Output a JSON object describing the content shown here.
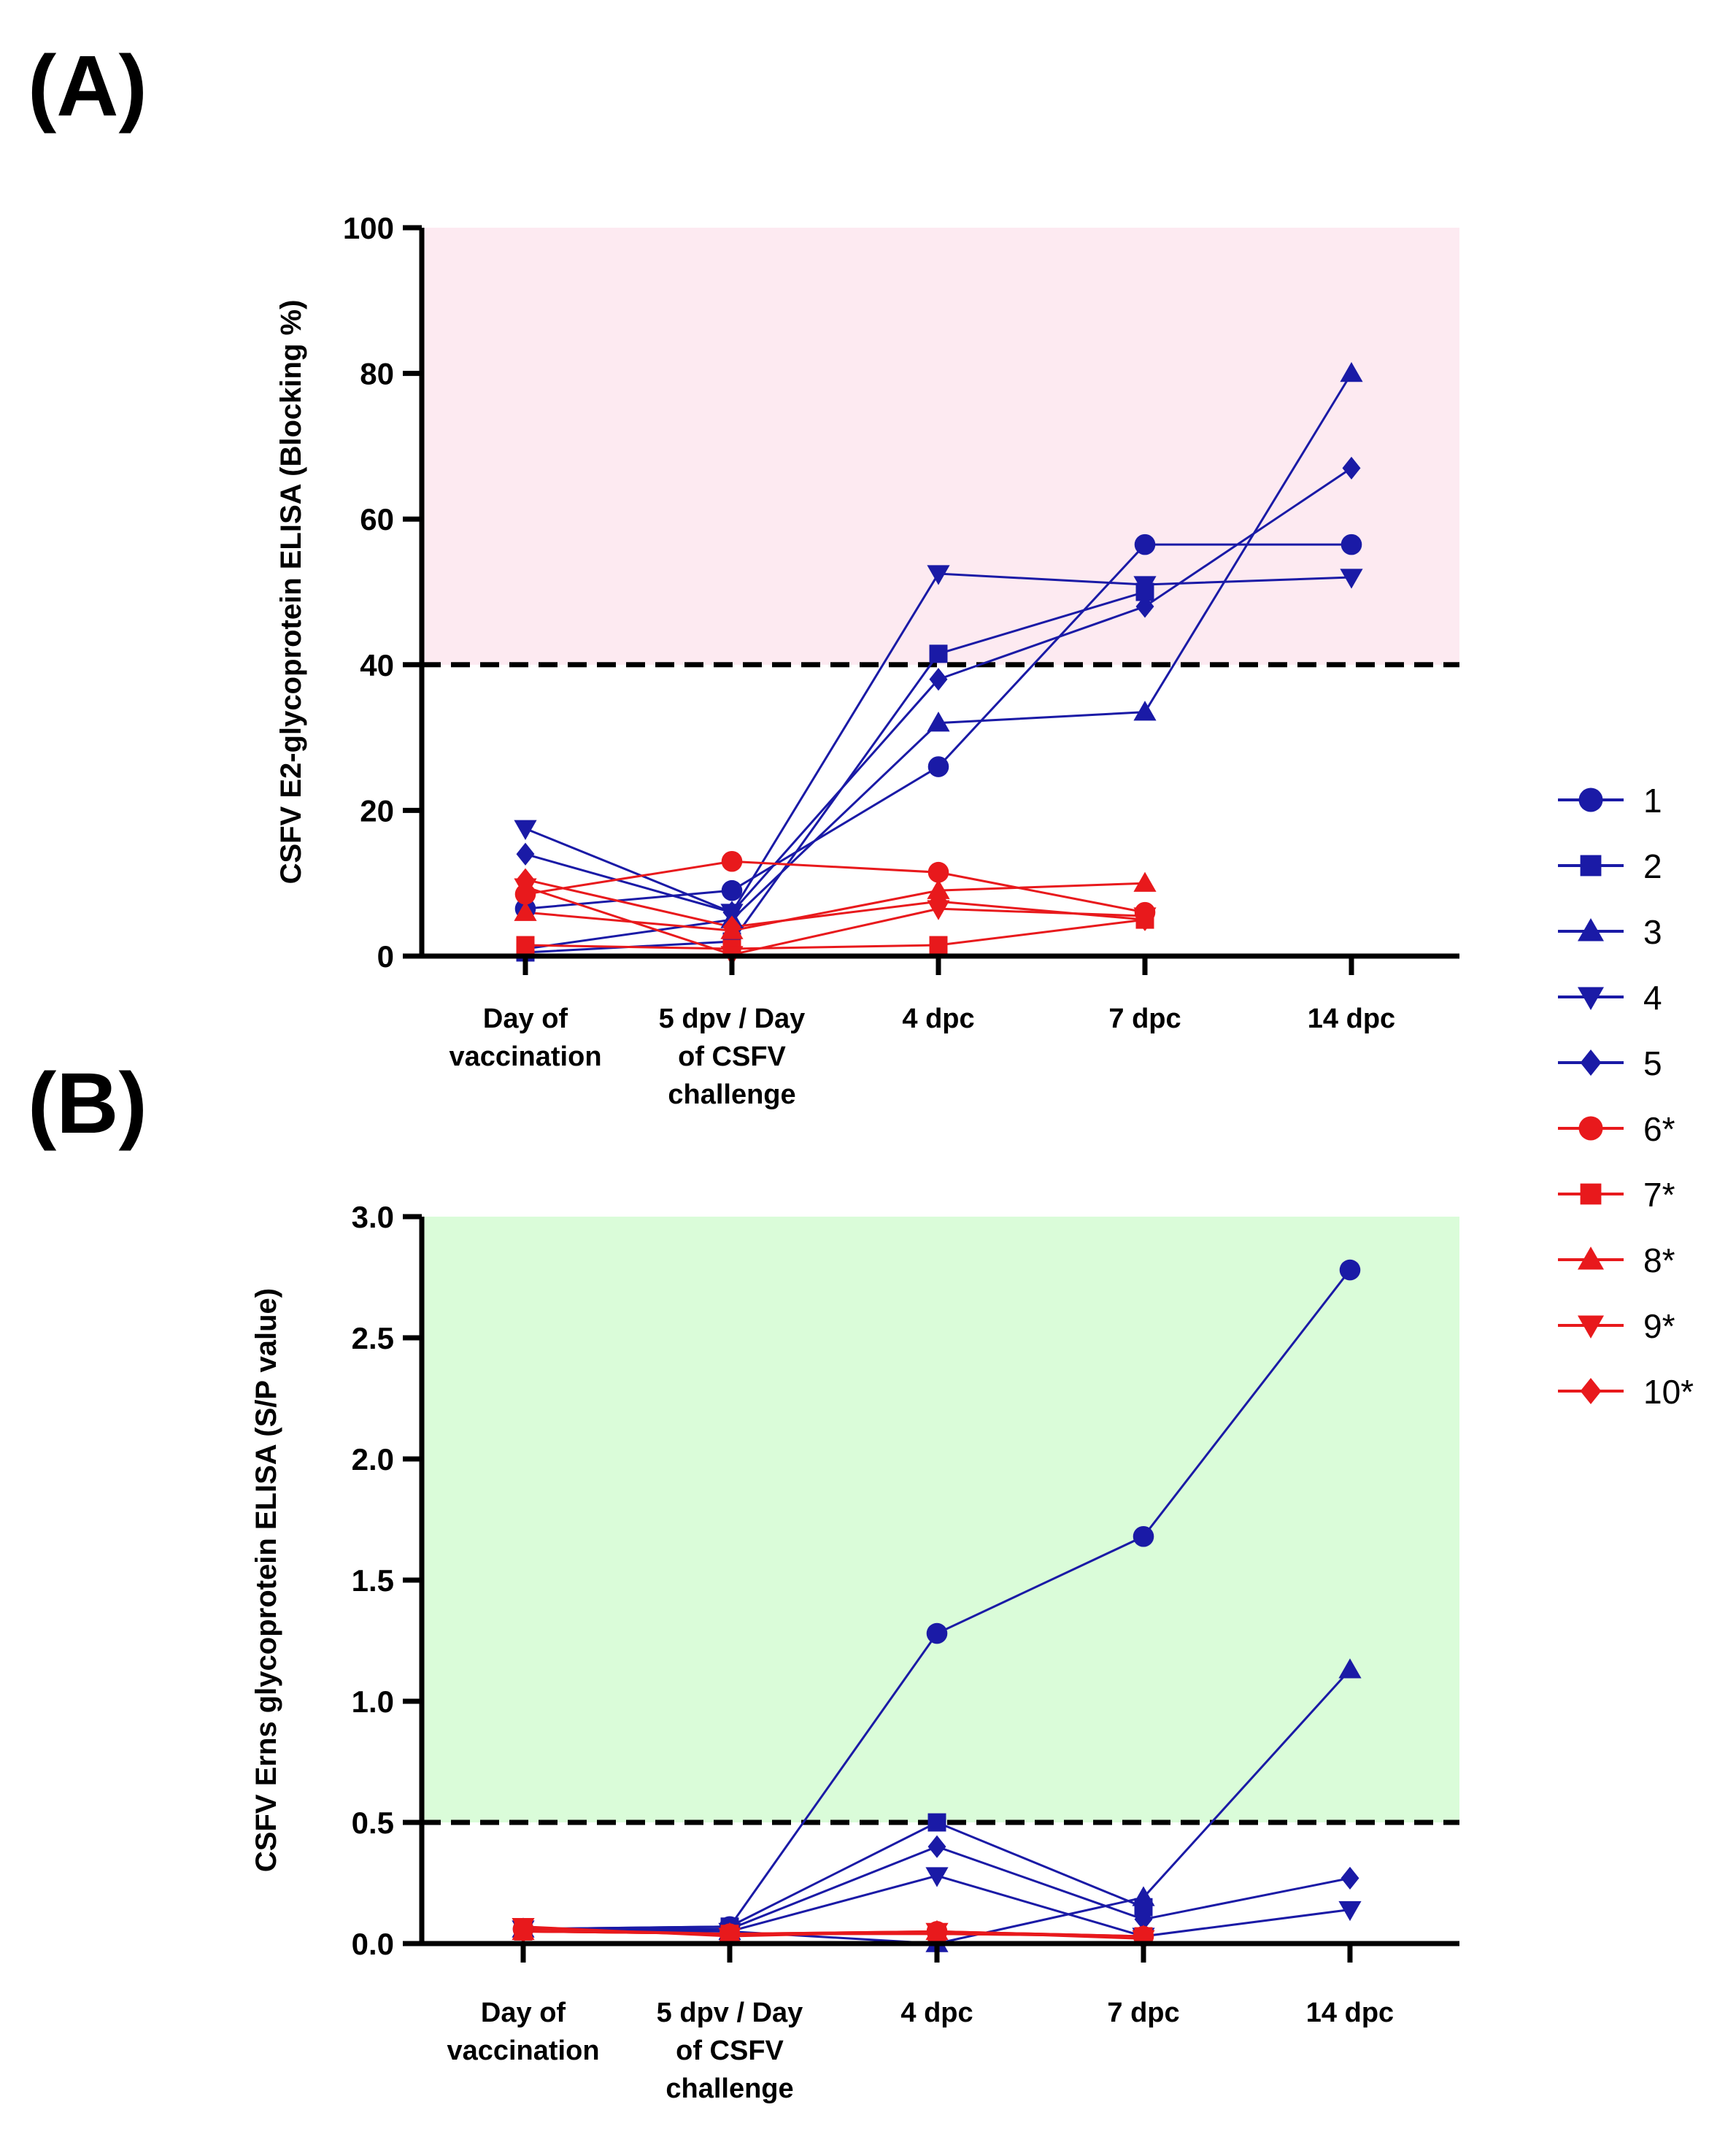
{
  "panels": [
    {
      "label": "(A)"
    },
    {
      "label": "(B)"
    }
  ],
  "colors": {
    "vaccinated_blue": "#1a1aa6",
    "control_red": "#e8191c",
    "positive_zone_A": "#fdeaf1",
    "positive_zone_B": "#dafcd9",
    "axis": "#000000"
  },
  "legend": {
    "placement": "right",
    "items": [
      {
        "label": "1",
        "marker": "circle",
        "color": "#1a1aa6"
      },
      {
        "label": "2",
        "marker": "square",
        "color": "#1a1aa6"
      },
      {
        "label": "3",
        "marker": "triangle-up",
        "color": "#1a1aa6"
      },
      {
        "label": "4",
        "marker": "triangle-down",
        "color": "#1a1aa6"
      },
      {
        "label": "5",
        "marker": "diamond",
        "color": "#1a1aa6"
      },
      {
        "label": "6*",
        "marker": "circle",
        "color": "#e8191c"
      },
      {
        "label": "7*",
        "marker": "square",
        "color": "#e8191c"
      },
      {
        "label": "8*",
        "marker": "triangle-up",
        "color": "#e8191c"
      },
      {
        "label": "9*",
        "marker": "triangle-down",
        "color": "#e8191c"
      },
      {
        "label": "10*",
        "marker": "diamond",
        "color": "#e8191c"
      }
    ]
  },
  "chart_data": [
    {
      "type": "line",
      "panel": "(A)",
      "title": "",
      "ylabel": "CSFV E2-glycoprotein ELISA (Blocking %)",
      "xlabel": "",
      "categories": [
        [
          "Day of",
          "vaccination"
        ],
        [
          "5 dpv / Day",
          "of CSFV",
          "challenge"
        ],
        [
          "4 dpc"
        ],
        [
          "7 dpc"
        ],
        [
          "14 dpc"
        ]
      ],
      "ylim": [
        0,
        100
      ],
      "yticks": [
        0,
        20,
        40,
        60,
        80,
        100
      ],
      "ytick_labels": [
        "0",
        "20",
        "40",
        "60",
        "80",
        "100"
      ],
      "threshold": 40,
      "positive_region": [
        40,
        100
      ],
      "grid": false,
      "series": [
        {
          "name": "1",
          "color": "#1a1aa6",
          "marker": "circle",
          "values": [
            6.5,
            9,
            26,
            56.5,
            56.5
          ]
        },
        {
          "name": "2",
          "color": "#1a1aa6",
          "marker": "square",
          "values": [
            0.5,
            2,
            41.5,
            50,
            null
          ]
        },
        {
          "name": "3",
          "color": "#1a1aa6",
          "marker": "triangle-up",
          "values": [
            1,
            5,
            32,
            33.5,
            80
          ]
        },
        {
          "name": "4",
          "color": "#1a1aa6",
          "marker": "triangle-down",
          "values": [
            17.5,
            6,
            52.5,
            51,
            52
          ]
        },
        {
          "name": "5",
          "color": "#1a1aa6",
          "marker": "diamond",
          "values": [
            14,
            6,
            38,
            48,
            67
          ]
        },
        {
          "name": "6*",
          "color": "#e8191c",
          "marker": "circle",
          "values": [
            8.5,
            13,
            11.5,
            6,
            null
          ]
        },
        {
          "name": "7*",
          "color": "#e8191c",
          "marker": "square",
          "values": [
            1.5,
            1,
            1.5,
            5,
            null
          ]
        },
        {
          "name": "8*",
          "color": "#e8191c",
          "marker": "triangle-up",
          "values": [
            6,
            3.5,
            9,
            10,
            null
          ]
        },
        {
          "name": "9*",
          "color": "#e8191c",
          "marker": "triangle-down",
          "values": [
            9.5,
            0.2,
            6.5,
            5.5,
            null
          ]
        },
        {
          "name": "10*",
          "color": "#e8191c",
          "marker": "diamond",
          "values": [
            10.5,
            4,
            7.5,
            5,
            null
          ]
        }
      ]
    },
    {
      "type": "line",
      "panel": "(B)",
      "title": "",
      "ylabel": "CSFV Erns glycoprotein ELISA (S/P value)",
      "xlabel": "",
      "categories": [
        [
          "Day of",
          "vaccination"
        ],
        [
          "5 dpv / Day",
          "of CSFV",
          "challenge"
        ],
        [
          "4 dpc"
        ],
        [
          "7 dpc"
        ],
        [
          "14 dpc"
        ]
      ],
      "ylim": [
        0,
        3.0
      ],
      "yticks": [
        0,
        0.5,
        1.0,
        1.5,
        2.0,
        2.5,
        3.0
      ],
      "ytick_labels": [
        "0.0",
        "0.5",
        "1.0",
        "1.5",
        "2.0",
        "2.5",
        "3.0"
      ],
      "threshold": 0.5,
      "positive_region": [
        0.5,
        3.0
      ],
      "grid": false,
      "series": [
        {
          "name": "1",
          "color": "#1a1aa6",
          "marker": "circle",
          "values": [
            0.06,
            0.07,
            1.28,
            1.68,
            2.78
          ]
        },
        {
          "name": "2",
          "color": "#1a1aa6",
          "marker": "square",
          "values": [
            0.06,
            0.07,
            0.5,
            0.15,
            null
          ]
        },
        {
          "name": "3",
          "color": "#1a1aa6",
          "marker": "triangle-up",
          "values": [
            0.06,
            0.05,
            0.0,
            0.19,
            1.13
          ]
        },
        {
          "name": "4",
          "color": "#1a1aa6",
          "marker": "triangle-down",
          "values": [
            0.06,
            0.05,
            0.28,
            0.03,
            0.14
          ]
        },
        {
          "name": "5",
          "color": "#1a1aa6",
          "marker": "diamond",
          "values": [
            0.06,
            0.06,
            0.4,
            0.1,
            0.27
          ]
        },
        {
          "name": "6*",
          "color": "#e8191c",
          "marker": "circle",
          "values": [
            0.06,
            0.04,
            0.05,
            0.03,
            null
          ]
        },
        {
          "name": "7*",
          "color": "#e8191c",
          "marker": "square",
          "values": [
            0.05,
            0.04,
            0.04,
            0.03,
            null
          ]
        },
        {
          "name": "8*",
          "color": "#e8191c",
          "marker": "triangle-up",
          "values": [
            0.05,
            0.04,
            0.05,
            0.03,
            null
          ]
        },
        {
          "name": "9*",
          "color": "#e8191c",
          "marker": "triangle-down",
          "values": [
            0.07,
            0.03,
            0.05,
            0.02,
            null
          ]
        },
        {
          "name": "10*",
          "color": "#e8191c",
          "marker": "diamond",
          "values": [
            0.05,
            0.04,
            0.04,
            0.03,
            null
          ]
        }
      ]
    }
  ]
}
